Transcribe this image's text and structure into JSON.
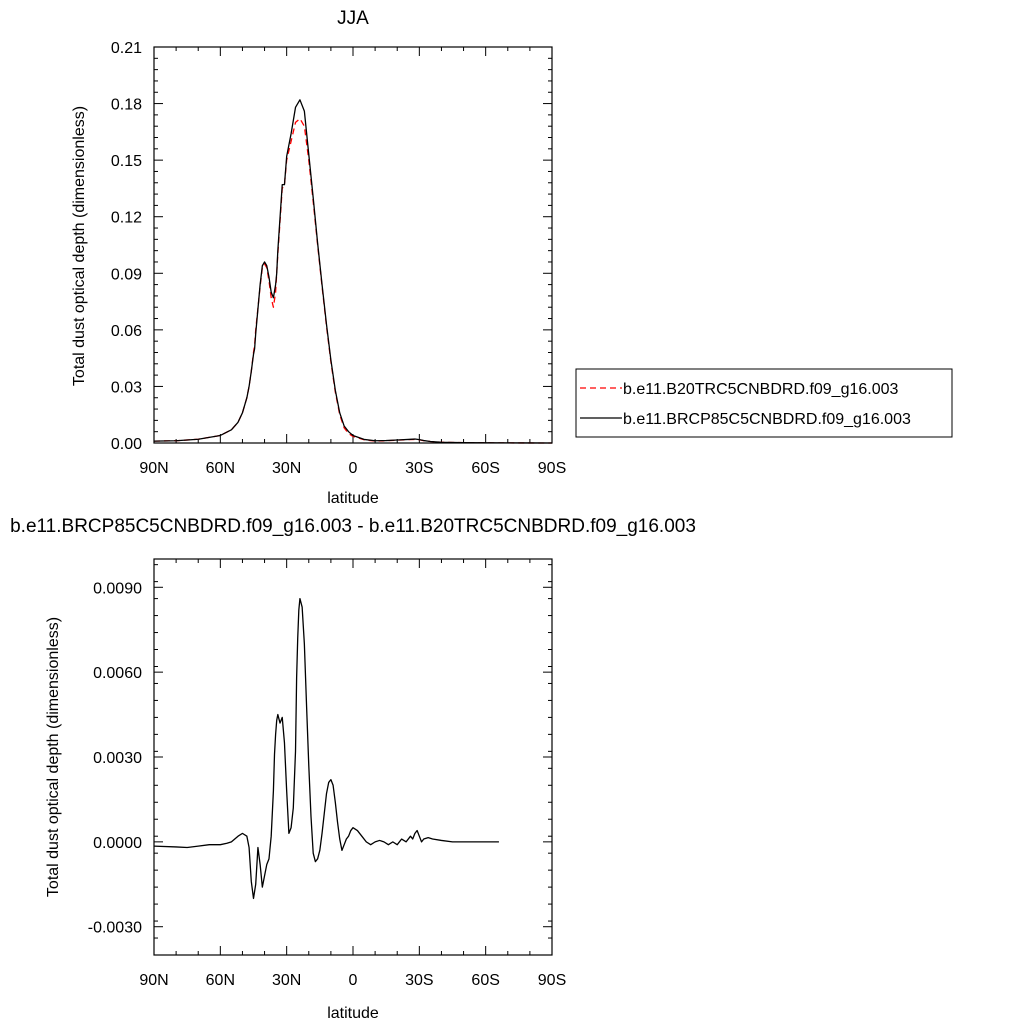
{
  "chart_data": [
    {
      "type": "line",
      "title": "JJA",
      "xlabel": "latitude",
      "ylabel": "Total dust optical depth (dimensionless)",
      "xlim": [
        90,
        -90
      ],
      "ylim": [
        0,
        0.21
      ],
      "xticks": [
        90,
        60,
        30,
        0,
        -30,
        -60,
        -90
      ],
      "xtick_labels": [
        "90N",
        "60N",
        "30N",
        "0",
        "30S",
        "60S",
        "90S"
      ],
      "yticks": [
        0,
        0.03,
        0.06,
        0.09,
        0.12,
        0.15,
        0.18,
        0.21
      ],
      "ytick_labels": [
        "0.00",
        "0.03",
        "0.06",
        "0.09",
        "0.12",
        "0.15",
        "0.18",
        "0.21"
      ],
      "grid": false,
      "legend_position": "right",
      "series": [
        {
          "name": "b.e11.B20TRC5CNBDRD.f09_g16.003",
          "color": "#ff0000",
          "style": "dashed",
          "x": [
            90,
            80,
            70,
            60,
            55,
            52,
            50,
            48,
            47,
            46,
            45,
            44.5,
            44,
            42,
            41,
            40,
            39,
            38,
            37,
            36,
            35,
            34.5,
            34,
            32,
            31,
            30,
            28,
            26,
            24,
            22,
            20,
            18,
            16,
            14,
            12,
            10,
            8,
            6,
            4,
            2,
            0,
            -5,
            -10,
            -15,
            -20,
            -25,
            -28,
            -30,
            -32,
            -35,
            -40,
            -50,
            -60,
            -70,
            -80,
            -90
          ],
          "y": [
            0.001,
            0.0012,
            0.002,
            0.004,
            0.007,
            0.011,
            0.016,
            0.024,
            0.03,
            0.038,
            0.048,
            0.052,
            0.06,
            0.083,
            0.093,
            0.095,
            0.093,
            0.086,
            0.077,
            0.072,
            0.08,
            0.09,
            0.1,
            0.135,
            0.137,
            0.15,
            0.16,
            0.17,
            0.172,
            0.168,
            0.15,
            0.128,
            0.105,
            0.083,
            0.062,
            0.043,
            0.027,
            0.015,
            0.008,
            0.005,
            0.0035,
            0.0017,
            0.001,
            0.0012,
            0.0015,
            0.0018,
            0.0019,
            0.0017,
            0.0012,
            0.0008,
            0.0004,
            0.0002,
            0.0001,
            5e-05,
            2e-05,
            0.0
          ]
        },
        {
          "name": "b.e11.BRCP85C5CNBDRD.f09_g16.003",
          "color": "#000000",
          "style": "solid",
          "x": [
            90,
            80,
            70,
            60,
            55,
            52,
            50,
            48,
            47,
            46,
            45,
            44.5,
            44,
            42,
            41,
            40,
            39,
            38,
            37,
            36,
            35,
            34.5,
            34,
            32,
            31,
            30,
            28,
            26,
            24,
            22,
            20,
            18,
            16,
            14,
            12,
            10,
            8,
            6,
            4,
            2,
            0,
            -5,
            -10,
            -15,
            -20,
            -25,
            -28,
            -30,
            -32,
            -35,
            -40,
            -50,
            -60,
            -70,
            -80,
            -90
          ],
          "y": [
            0.001,
            0.0012,
            0.002,
            0.004,
            0.007,
            0.011,
            0.016,
            0.024,
            0.03,
            0.038,
            0.047,
            0.05,
            0.058,
            0.084,
            0.094,
            0.096,
            0.094,
            0.088,
            0.08,
            0.077,
            0.084,
            0.09,
            0.102,
            0.137,
            0.137,
            0.152,
            0.164,
            0.178,
            0.182,
            0.176,
            0.153,
            0.13,
            0.106,
            0.084,
            0.063,
            0.044,
            0.028,
            0.016,
            0.009,
            0.006,
            0.004,
            0.0019,
            0.0012,
            0.0013,
            0.0016,
            0.0019,
            0.0021,
            0.0018,
            0.0013,
            0.0008,
            0.0004,
            0.0002,
            0.0001,
            5e-05,
            2e-05,
            0.0
          ]
        }
      ]
    },
    {
      "type": "line",
      "title": "b.e11.BRCP85C5CNBDRD.f09_g16.003 - b.e11.B20TRC5CNBDRD.f09_g16.003",
      "xlabel": "latitude",
      "ylabel": "Total dust optical depth (dimensionless)",
      "xlim": [
        90,
        -90
      ],
      "ylim": [
        -0.004,
        0.01
      ],
      "xticks": [
        90,
        60,
        30,
        0,
        -30,
        -60,
        -90
      ],
      "xtick_labels": [
        "90N",
        "60N",
        "30N",
        "0",
        "30S",
        "60S",
        "90S"
      ],
      "yticks": [
        -0.003,
        0.0,
        0.003,
        0.006,
        0.009
      ],
      "ytick_labels": [
        "-0.0030",
        "0.0000",
        "0.0030",
        "0.0060",
        "0.0090"
      ],
      "grid": false,
      "series": [
        {
          "color": "#000000",
          "style": "solid",
          "x": [
            90,
            80,
            75,
            70,
            65,
            60,
            57,
            55,
            52,
            50,
            48,
            47,
            46,
            45,
            44,
            43,
            42,
            41,
            40,
            39,
            38,
            37,
            36,
            35.5,
            35,
            34.5,
            34,
            33,
            32,
            31,
            30,
            29,
            28,
            27,
            26,
            25.5,
            25,
            24.5,
            24,
            23,
            22,
            21,
            20,
            19,
            18,
            17,
            16,
            15,
            14,
            13,
            12,
            11,
            10,
            9,
            8,
            7,
            6,
            5,
            4,
            3,
            2,
            1,
            0,
            -2,
            -4,
            -6,
            -8,
            -10,
            -12,
            -14,
            -16,
            -18,
            -20,
            -22,
            -24,
            -26,
            -27,
            -28,
            -29,
            -30,
            -31,
            -32,
            -34,
            -36,
            -40,
            -45,
            -50,
            -55,
            -60,
            -66
          ],
          "y": [
            -0.00015,
            -0.00018,
            -0.0002,
            -0.00015,
            -0.0001,
            -0.0001,
            -5e-05,
            0.0,
            0.0002,
            0.0003,
            0.0002,
            -0.0002,
            -0.0014,
            -0.002,
            -0.0015,
            -0.0002,
            -0.0008,
            -0.0016,
            -0.0012,
            -0.0008,
            -0.0006,
            0.0002,
            0.0018,
            0.0031,
            0.0038,
            0.0043,
            0.0045,
            0.0042,
            0.0044,
            0.0035,
            0.0018,
            0.0003,
            0.0005,
            0.0012,
            0.0032,
            0.0058,
            0.0072,
            0.0082,
            0.0086,
            0.0083,
            0.007,
            0.0048,
            0.0027,
            0.0009,
            -0.0004,
            -0.0007,
            -0.0006,
            -0.0003,
            0.0003,
            0.001,
            0.0017,
            0.0021,
            0.0022,
            0.002,
            0.0014,
            0.0007,
            0.0001,
            -0.0003,
            -0.0001,
            0.0001,
            0.0002,
            0.0004,
            0.0005,
            0.0004,
            0.0002,
            0.0,
            -0.0001,
            0.0,
            5e-05,
            0.0,
            -0.0001,
            0.0,
            -0.0001,
            0.0001,
            0.0,
            0.0002,
            0.0001,
            0.0003,
            0.0004,
            0.0002,
            0.0,
            0.0001,
            0.00015,
            0.0001,
            5e-05,
            0.0,
            0.0,
            0.0,
            0.0,
            0.0
          ]
        }
      ]
    }
  ]
}
